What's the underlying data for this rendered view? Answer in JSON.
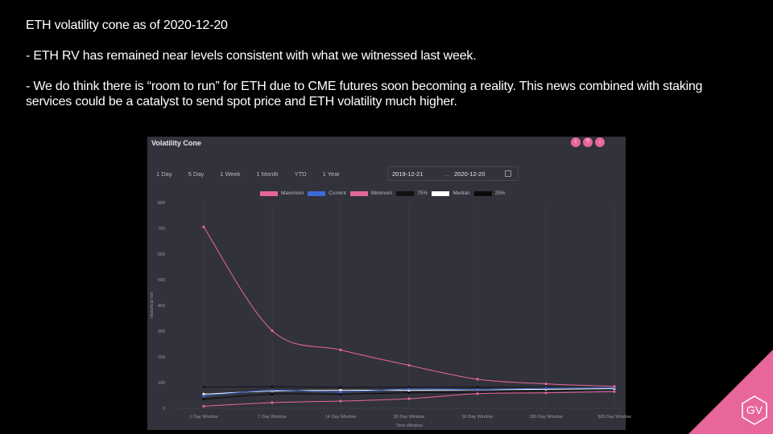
{
  "slide": {
    "line1": "ETH volatility  cone as of 2020-12-20",
    "line2": "- ETH RV has remained near levels consistent with what we witnessed last week.",
    "line3": "- We do think there is “room to run” for ETH due to CME futures soon becoming a reality. This news combined with staking services could be a catalyst to send spot price and ETH volatility  much higher."
  },
  "panel": {
    "title": "Volatility Cone",
    "icons": [
      "info-icon",
      "help-icon",
      "download-icon"
    ],
    "ranges": [
      "1 Day",
      "5 Day",
      "1 Week",
      "1 Month",
      "YTD",
      "1 Year"
    ],
    "date_from": "2019-12-21",
    "date_sep": "...",
    "date_to": "2020-12-20"
  },
  "logo": {
    "text": "GV",
    "color": "#e7669c"
  },
  "chart_data": {
    "type": "line",
    "categories": [
      "1 Day Window",
      "7 Day Window",
      "14 Day Window",
      "30 Day Window",
      "90 Day Window",
      "180 Day Window",
      "365 Day Window"
    ],
    "xlabel": "Time Window",
    "ylabel": "Historical Vol",
    "ylim": [
      0,
      800
    ],
    "yticks": [
      0,
      100,
      200,
      300,
      400,
      500,
      600,
      700,
      800
    ],
    "legend_position": "top",
    "series": [
      {
        "name": "Maximum",
        "color": "#e7669c",
        "values": [
          705,
          302,
          227,
          167,
          113,
          95,
          85
        ]
      },
      {
        "name": "Current",
        "color": "#3d6bd6",
        "values": [
          48,
          70,
          63,
          75,
          73,
          78,
          80
        ]
      },
      {
        "name": "Minimum",
        "color": "#e7669c",
        "values": [
          8,
          22,
          28,
          37,
          57,
          60,
          65
        ]
      },
      {
        "name": "75%",
        "color": "#111111",
        "values": [
          82,
          84,
          82,
          82,
          82,
          82,
          80
        ]
      },
      {
        "name": "Median",
        "color": "#ffffff",
        "values": [
          55,
          67,
          70,
          70,
          72,
          74,
          76
        ]
      },
      {
        "name": "25%",
        "color": "#0a0a0a",
        "values": [
          35,
          55,
          55,
          60,
          62,
          68,
          74
        ]
      }
    ]
  }
}
